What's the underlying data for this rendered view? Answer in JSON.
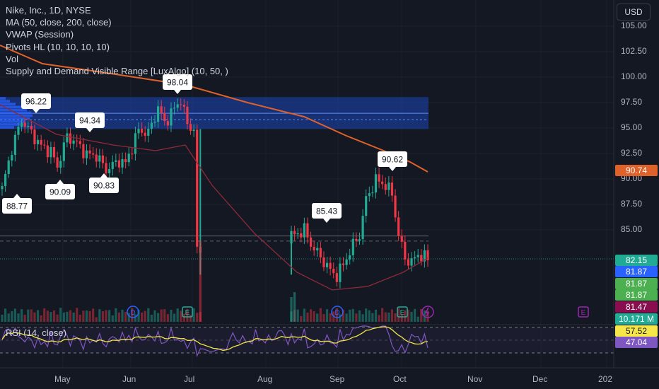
{
  "legend": {
    "symbol": "Nike, Inc., 1D, NYSE",
    "ma": "MA (50, close, 200, close)",
    "vwap": "VWAP (Session)",
    "pivots": "Pivots HL (10, 10, 10, 10)",
    "vol": "Vol",
    "supply_demand": "Supply and Demand Visible Range [LuxAlgo] (10, 50, )"
  },
  "rsi_legend": "RSI (14, close)",
  "currency": "USD",
  "colors": {
    "background": "#141823",
    "up": "#22ab94",
    "down": "#f23645",
    "ma200": "#e0622b",
    "ma50": "#8e2a3a",
    "rsi": "#7e57c2",
    "rsi_ma": "#f5e64a",
    "supply_zone": "#1a47b8"
  },
  "chart_data": {
    "type": "candlestick",
    "y_ticks": [
      "105.00",
      "102.50",
      "100.00",
      "97.50",
      "95.00",
      "92.50",
      "90.00",
      "87.50",
      "85.00"
    ],
    "x_ticks": [
      "May",
      "Jun",
      "Jul",
      "Aug",
      "Sep",
      "Oct",
      "Nov",
      "Dec",
      "202"
    ],
    "ylim": [
      80.6,
      106
    ],
    "pivot_labels": [
      {
        "text": "96.22",
        "kind": "high",
        "date": "late Apr"
      },
      {
        "text": "94.34",
        "kind": "high",
        "date": "mid May"
      },
      {
        "text": "98.04",
        "kind": "high",
        "date": "late Jun"
      },
      {
        "text": "85.43",
        "kind": "high",
        "date": "late Aug"
      },
      {
        "text": "90.62",
        "kind": "high",
        "date": "late Sep"
      },
      {
        "text": "88.77",
        "kind": "low",
        "date": "early Apr"
      },
      {
        "text": "90.09",
        "kind": "low",
        "date": "early May"
      },
      {
        "text": "90.83",
        "kind": "low",
        "date": "late May"
      }
    ],
    "price_tags": [
      {
        "text": "90.74",
        "color": "#e0622b"
      },
      {
        "text": "82.15",
        "color": "#22ab94"
      },
      {
        "text": "81.87",
        "color": "#2962ff"
      },
      {
        "text": "81.87",
        "color": "#4caf50"
      },
      {
        "text": "81.87",
        "color": "#4caf50"
      },
      {
        "text": "81.47",
        "color": "#880e4f"
      },
      {
        "text": "10.171 M",
        "color": "#22ab94"
      },
      {
        "text": "57.52",
        "color": "#f5e64a"
      },
      {
        "text": "47.04",
        "color": "#7e57c2"
      }
    ],
    "events": [
      "D",
      "E",
      "D",
      "E",
      "E"
    ],
    "supply_zone": [
      94.9,
      98.0
    ],
    "last_price": 82.15,
    "ma200_last": 90.74,
    "rsi_last": 47.04,
    "rsi_ma_last": 57.52
  }
}
